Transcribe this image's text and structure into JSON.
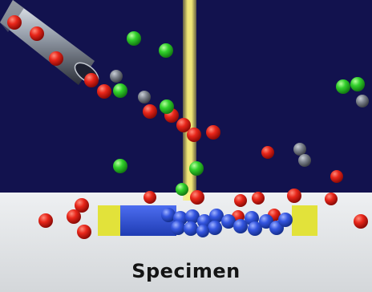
{
  "caption": "Specimen",
  "colors": {
    "vacuum": "#12124e",
    "stage": "#dcdfe2",
    "beam": "#f4e23a",
    "sample": "#2f52d8",
    "pad": "#e2e23a",
    "particle_red": "#e01e14",
    "particle_green": "#2fd02a",
    "particle_gray": "#7a7f86"
  },
  "icons": [
    "ion-beam",
    "gas-injection-needle",
    "specimen-sample",
    "contact-pad-left",
    "contact-pad-right"
  ]
}
